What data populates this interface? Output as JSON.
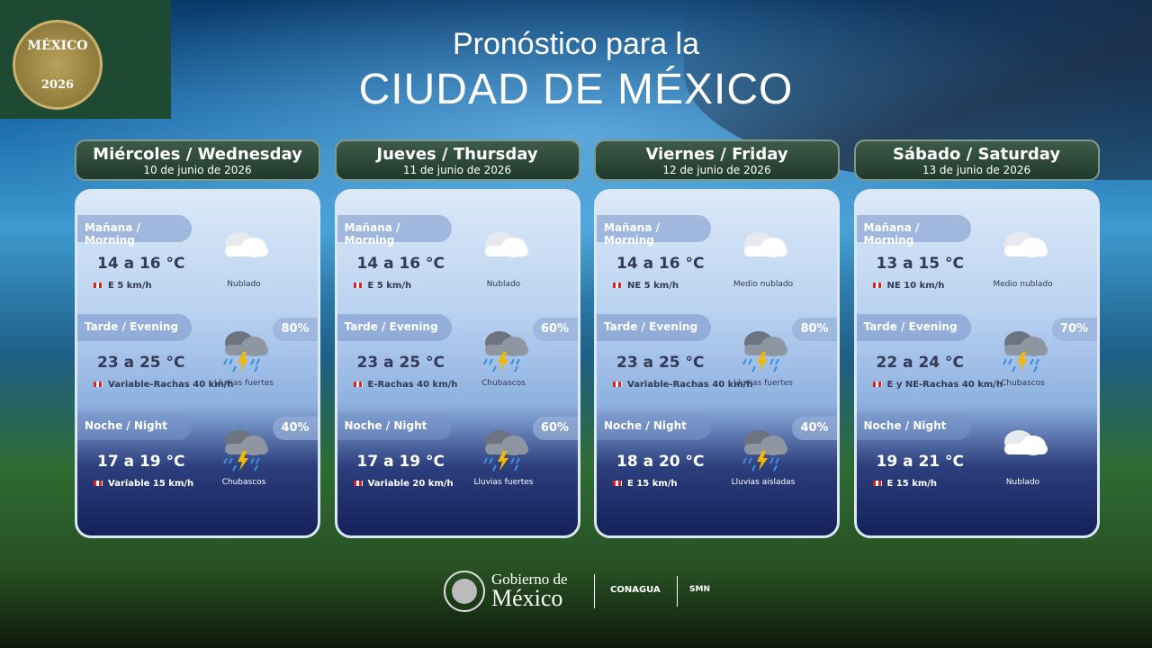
{
  "header": {
    "logo_text": "MÉXICO",
    "logo_year": "2026",
    "title_line1": "Pronóstico para la",
    "title_line2": "CIUDAD DE MÉXICO"
  },
  "days": [
    {
      "name": "Miércoles / Wednesday",
      "date": "10 de junio de 2026",
      "periods": [
        {
          "label": "Mañana / Morning",
          "temp": "14 a 16 °C",
          "wind": "E 5 km/h",
          "sky": "Nublado"
        },
        {
          "label": "Tarde / Evening",
          "temp": "23 a 25 °C",
          "wind": "Variable-Rachas 40 km/h",
          "sky": "Lluvias fuertes",
          "prob": "80%"
        },
        {
          "label": "Noche / Night",
          "temp": "17 a 19 °C",
          "wind": "Variable 15 km/h",
          "sky": "Chubascos",
          "prob": "40%"
        }
      ]
    },
    {
      "name": "Jueves / Thursday",
      "date": "11 de junio de 2026",
      "periods": [
        {
          "label": "Mañana / Morning",
          "temp": "14 a 16 °C",
          "wind": "E 5 km/h",
          "sky": "Nublado"
        },
        {
          "label": "Tarde / Evening",
          "temp": "23 a 25 °C",
          "wind": "E-Rachas 40 km/h",
          "sky": "Chubascos",
          "prob": "60%"
        },
        {
          "label": "Noche / Night",
          "temp": "17 a 19 °C",
          "wind": "Variable 20 km/h",
          "sky": "Lluvias fuertes",
          "prob": "60%"
        }
      ]
    },
    {
      "name": "Viernes / Friday",
      "date": "12 de junio de 2026",
      "periods": [
        {
          "label": "Mañana / Morning",
          "temp": "14 a 16 °C",
          "wind": "NE 5 km/h",
          "sky": "Medio nublado"
        },
        {
          "label": "Tarde / Evening",
          "temp": "23 a 25 °C",
          "wind": "Variable-Rachas 40 km/h",
          "sky": "Lluvias fuertes",
          "prob": "80%"
        },
        {
          "label": "Noche / Night",
          "temp": "18 a 20 °C",
          "wind": "E 15 km/h",
          "sky": "Lluvias aisladas",
          "prob": "40%"
        }
      ]
    },
    {
      "name": "Sábado / Saturday",
      "date": "13 de junio de 2026",
      "periods": [
        {
          "label": "Mañana / Morning",
          "temp": "13 a 15 °C",
          "wind": "NE 10 km/h",
          "sky": "Medio nublado"
        },
        {
          "label": "Tarde / Evening",
          "temp": "22 a 24 °C",
          "wind": "E y NE-Rachas 40 km/h",
          "sky": "Chubascos",
          "prob": "70%"
        },
        {
          "label": "Noche / Night",
          "temp": "19 a 21 °C",
          "wind": "E 15 km/h",
          "sky": "Nublado"
        }
      ]
    }
  ],
  "footer": {
    "gov_line1": "Gobierno de",
    "gov_line2": "México",
    "agency1": "CONAGUA",
    "agency2": "SMN"
  }
}
